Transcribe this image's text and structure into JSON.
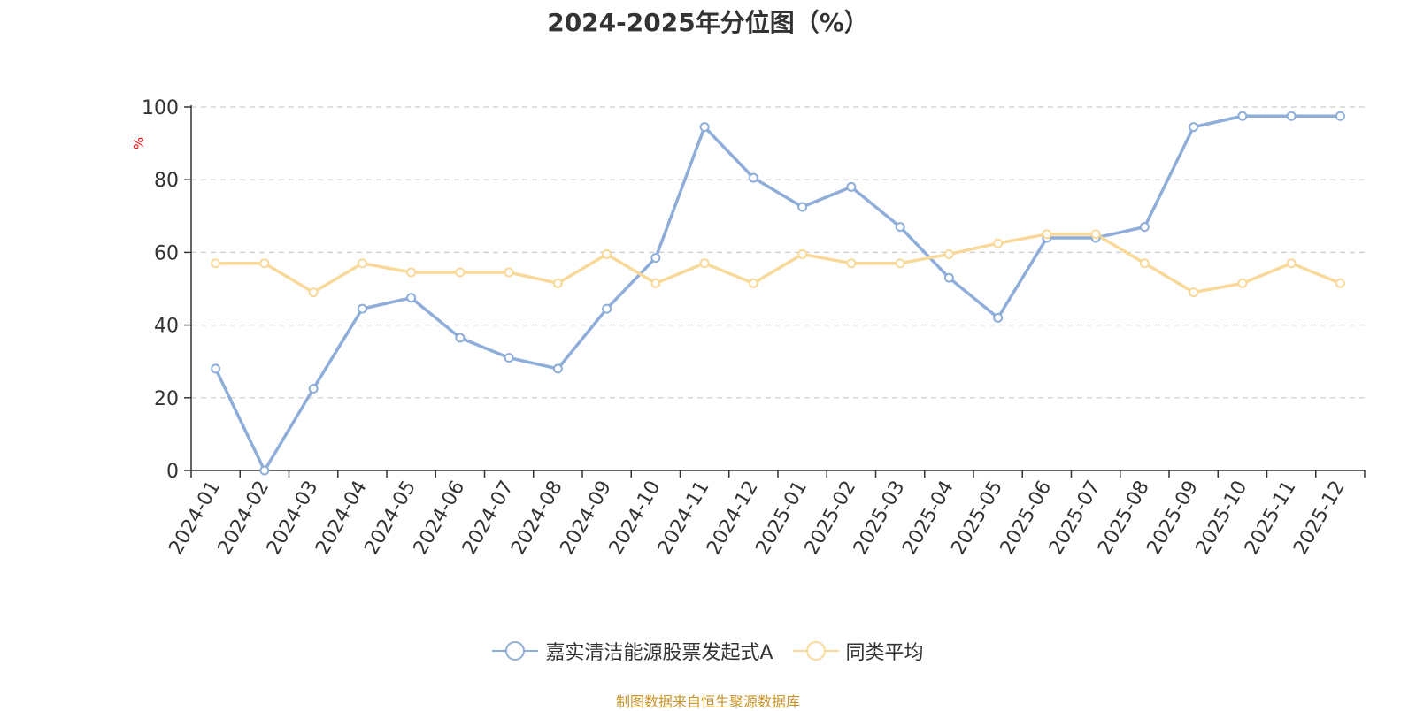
{
  "chart_data": {
    "type": "line",
    "title": "2024-2025年分位图（%）",
    "ylabel": "%",
    "ylim": [
      0,
      100
    ],
    "yticks": [
      0,
      20,
      40,
      60,
      80,
      100
    ],
    "grid": true,
    "legend_position": "bottom-center",
    "categories": [
      "2024-01",
      "2024-02",
      "2024-03",
      "2024-04",
      "2024-05",
      "2024-06",
      "2024-07",
      "2024-08",
      "2024-09",
      "2024-10",
      "2024-11",
      "2024-12",
      "2025-01",
      "2025-02",
      "2025-03",
      "2025-04",
      "2025-05",
      "2025-06",
      "2025-07",
      "2025-08",
      "2025-09",
      "2025-10",
      "2025-11",
      "2025-12"
    ],
    "series": [
      {
        "name": "嘉实清洁能源股票发起式A",
        "color": "#8eadd9",
        "values": [
          28,
          0,
          22.5,
          44.5,
          47.5,
          36.5,
          31,
          28,
          44.5,
          58.5,
          94.5,
          80.5,
          72.5,
          78,
          67,
          53,
          42,
          64,
          64,
          67,
          94.5,
          97.5,
          97.5,
          97.5
        ]
      },
      {
        "name": "同类平均",
        "color": "#f9d99a",
        "values": [
          57,
          57,
          49,
          57,
          54.5,
          54.5,
          54.5,
          51.5,
          59.5,
          51.5,
          57,
          51.5,
          59.5,
          57,
          57,
          59.5,
          62.5,
          65,
          65,
          57,
          49,
          51.5,
          57,
          51.5
        ]
      }
    ]
  },
  "source_text": "制图数据来自恒生聚源数据库",
  "colors": {
    "axis": "#333333",
    "grid": "#cccccc",
    "ylabel": "#ff0000",
    "source": "#c9952a"
  }
}
